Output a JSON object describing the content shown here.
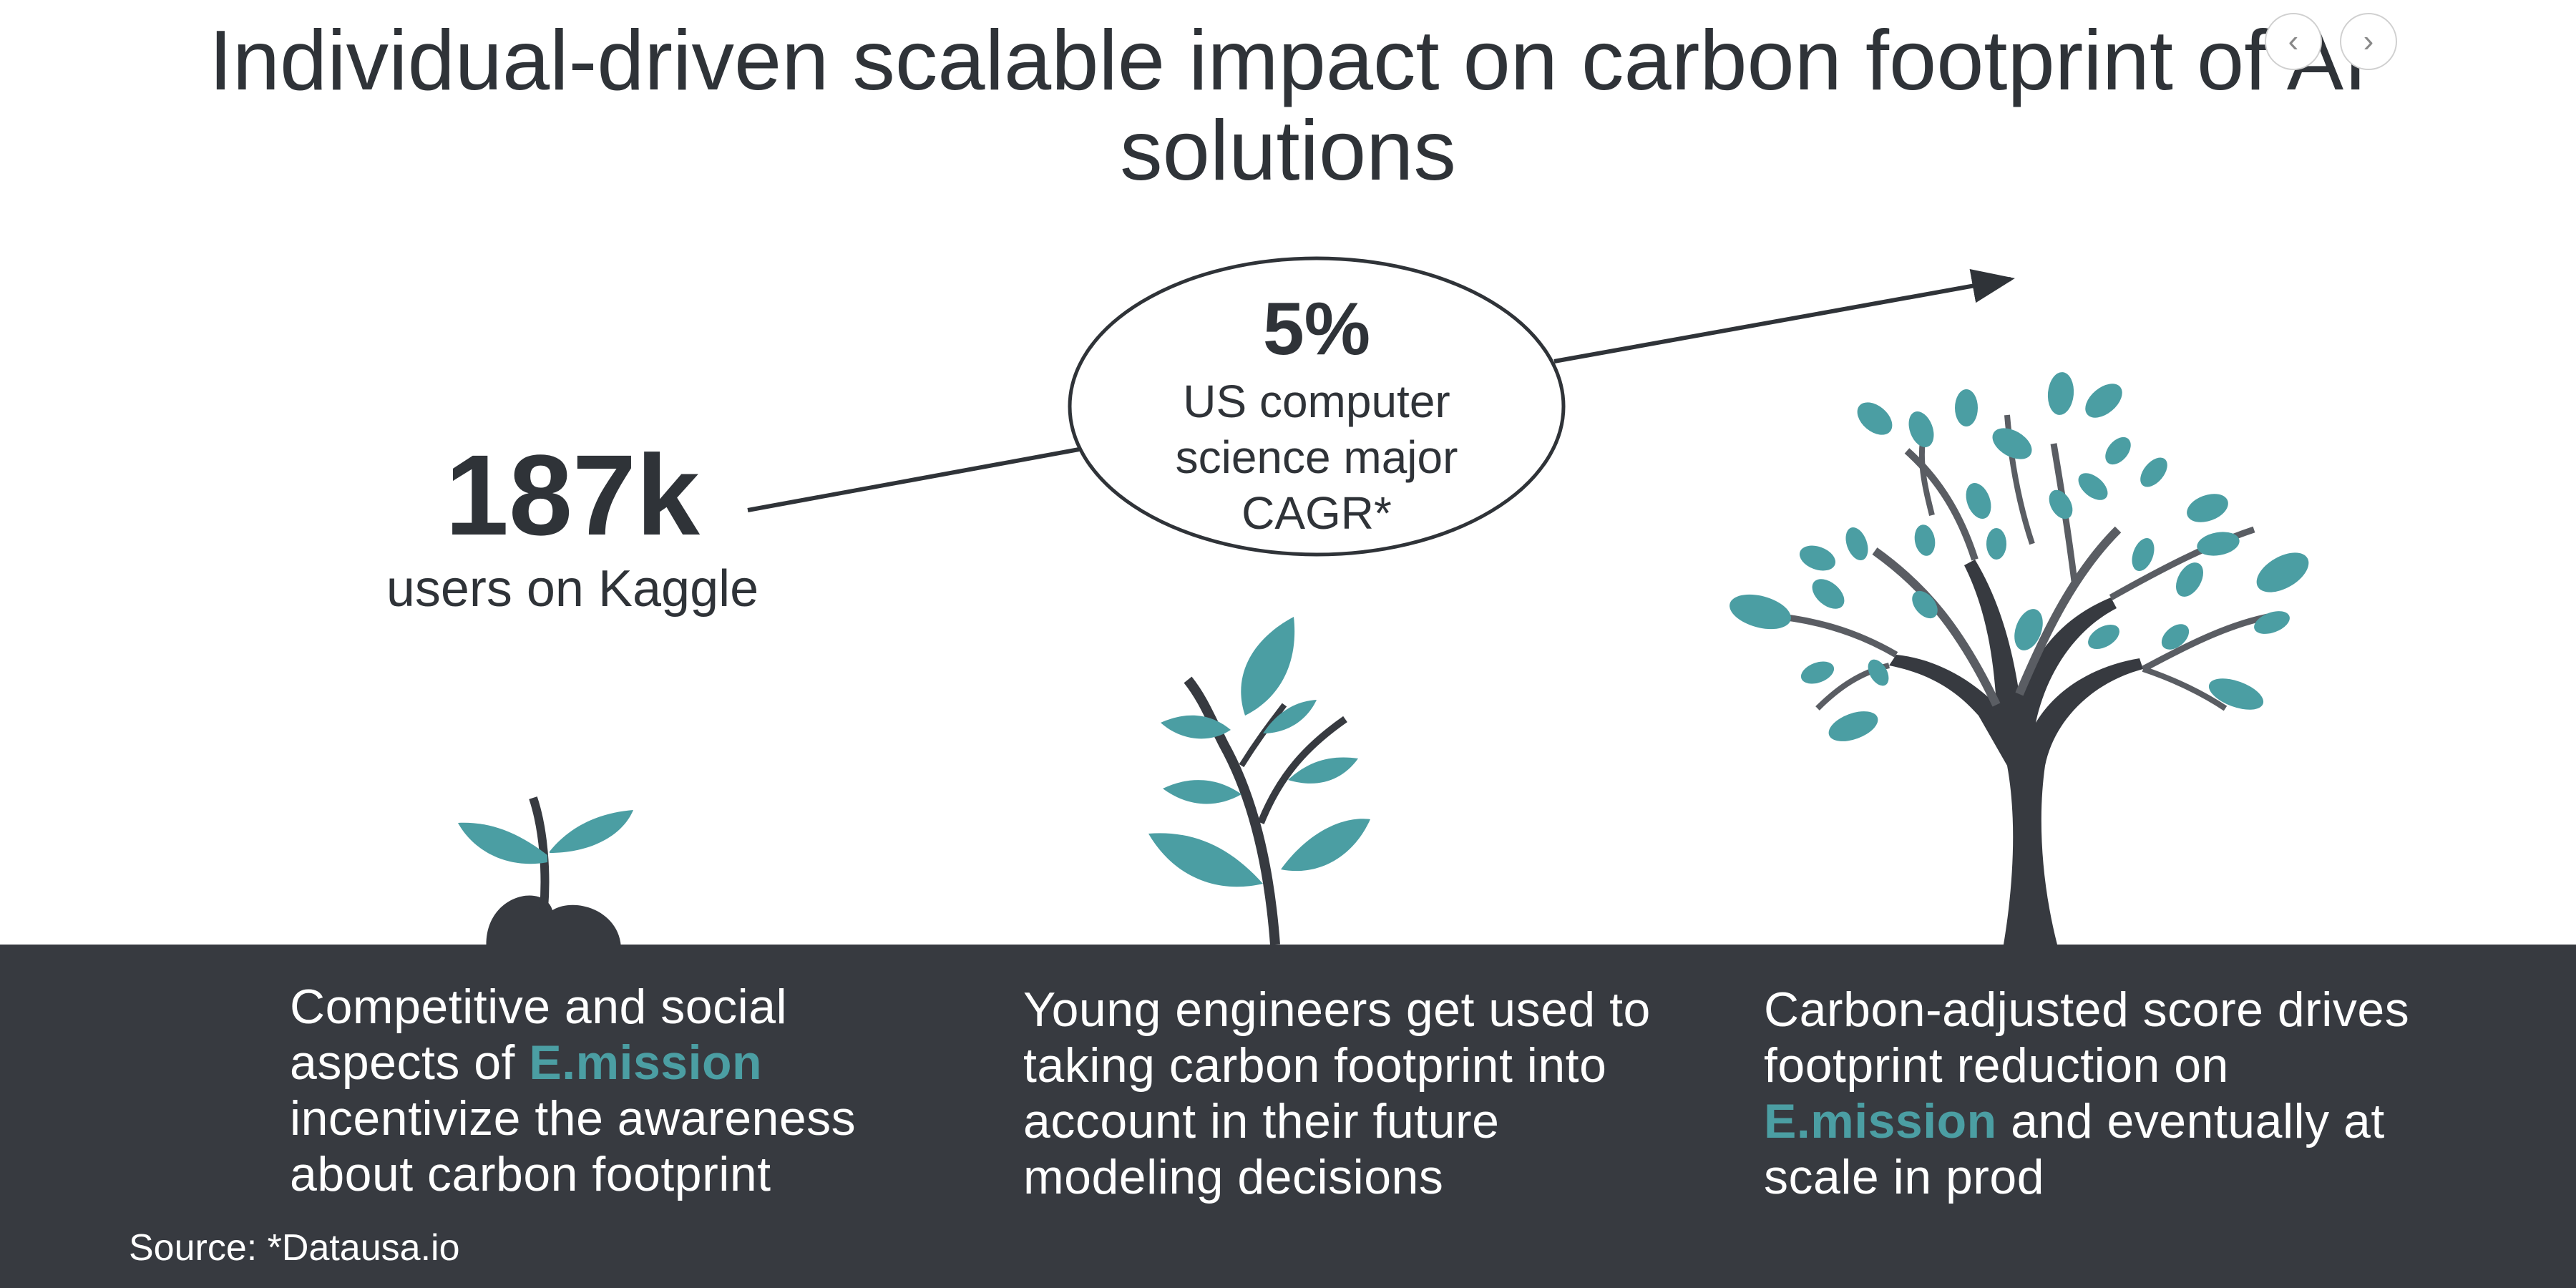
{
  "title": "Individual-driven scalable impact on carbon footprint of AI solutions",
  "nav": {
    "prev_icon": "‹",
    "next_icon": "›"
  },
  "stats": {
    "kaggle_value": "187k",
    "kaggle_label": "users on Kaggle",
    "cagr_value": "5%",
    "cagr_label": "US computer science major CAGR*"
  },
  "captions": {
    "c1_before": "Competitive and social aspects of ",
    "c1_brand": "E.mission",
    "c1_after": " incentivize the awareness about carbon footprint",
    "c2": "Young engineers get used to taking carbon footprint into account in their future modeling decisions",
    "c3_before": "Carbon-adjusted score drives footprint reduction on ",
    "c3_brand": "E.mission",
    "c3_after": " and eventually at scale in prod"
  },
  "source": "Source: *Datausa.io",
  "colors": {
    "dark": "#373a40",
    "teal": "#4b9ea3",
    "branch_grey": "#5a5d63"
  }
}
